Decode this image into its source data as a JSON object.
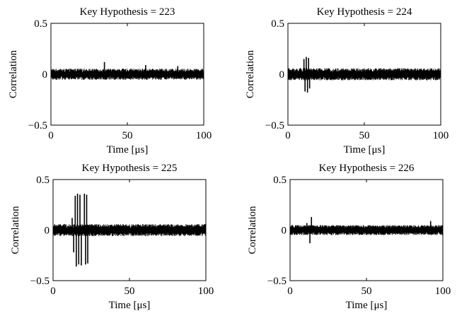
{
  "chart_data": [
    {
      "type": "line",
      "title": "Key Hypothesis = 223",
      "xlabel": "Time [μs]",
      "ylabel": "Correlation",
      "xlim": [
        0,
        100
      ],
      "ylim": [
        -0.5,
        0.5
      ],
      "xticks": [
        "0",
        "50",
        "100"
      ],
      "yticks": [
        "0.5",
        "0",
        "−0.5"
      ],
      "noise_amplitude": 0.055,
      "spikes": [
        {
          "x": 35,
          "y": 0.12
        },
        {
          "x": 62,
          "y": 0.09
        },
        {
          "x": 83,
          "y": 0.08
        }
      ]
    },
    {
      "type": "line",
      "title": "Key Hypothesis = 224",
      "xlabel": "Time [μs]",
      "ylabel": "Correlation",
      "xlim": [
        0,
        100
      ],
      "ylim": [
        -0.5,
        0.5
      ],
      "xticks": [
        "0",
        "50",
        "100"
      ],
      "yticks": [
        "0.5",
        "0",
        "−0.5"
      ],
      "noise_amplitude": 0.06,
      "spikes": [
        {
          "x": 10.5,
          "y": 0.15
        },
        {
          "x": 11.2,
          "y": -0.17
        },
        {
          "x": 12.0,
          "y": 0.17
        },
        {
          "x": 12.8,
          "y": -0.18
        },
        {
          "x": 13.5,
          "y": 0.16
        },
        {
          "x": 14.2,
          "y": -0.14
        }
      ]
    },
    {
      "type": "line",
      "title": "Key Hypothesis = 225",
      "xlabel": "Time [μs]",
      "ylabel": "Correlation",
      "xlim": [
        0,
        100
      ],
      "ylim": [
        -0.5,
        0.5
      ],
      "xticks": [
        "0",
        "50",
        "100"
      ],
      "yticks": [
        "0.5",
        "0",
        "−0.5"
      ],
      "noise_amplitude": 0.06,
      "spikes": [
        {
          "x": 12.5,
          "y": 0.12
        },
        {
          "x": 13.5,
          "y": -0.22
        },
        {
          "x": 14.5,
          "y": 0.34
        },
        {
          "x": 15.2,
          "y": -0.36
        },
        {
          "x": 16.0,
          "y": 0.36
        },
        {
          "x": 16.8,
          "y": -0.34
        },
        {
          "x": 17.6,
          "y": 0.35
        },
        {
          "x": 18.5,
          "y": -0.35
        },
        {
          "x": 20.5,
          "y": 0.36
        },
        {
          "x": 21.3,
          "y": -0.34
        },
        {
          "x": 22.0,
          "y": 0.35
        },
        {
          "x": 22.7,
          "y": -0.33
        }
      ]
    },
    {
      "type": "line",
      "title": "Key Hypothesis = 226",
      "xlabel": "Time [μs]",
      "ylabel": "Correlation",
      "xlim": [
        0,
        100
      ],
      "ylim": [
        -0.5,
        0.5
      ],
      "xticks": [
        "0",
        "50",
        "100"
      ],
      "yticks": [
        "0.5",
        "0",
        "−0.5"
      ],
      "noise_amplitude": 0.05,
      "spikes": [
        {
          "x": 11.0,
          "y": 0.07
        },
        {
          "x": 13.0,
          "y": -0.13
        },
        {
          "x": 14.0,
          "y": 0.13
        },
        {
          "x": 92.0,
          "y": 0.09
        }
      ]
    }
  ]
}
